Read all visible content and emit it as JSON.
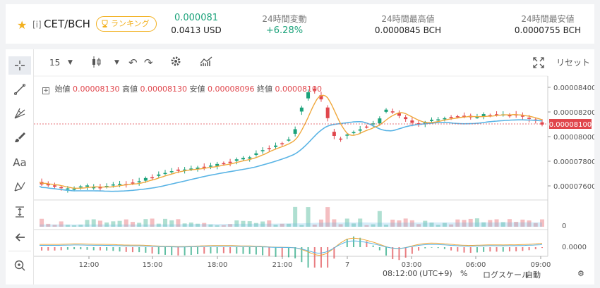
{
  "header": {
    "pair_prefix": "[i]",
    "pair": "CET/BCH",
    "ranking_label": "ランキング",
    "price": "0.000081",
    "price_usd": "0.0413 USD",
    "change_label": "24時間変動",
    "change_value": "+6.28%",
    "high_label": "24時間最高値",
    "high_value": "0.0000845 BCH",
    "low_label": "24時間最安値",
    "low_value": "0.0000755 BCH"
  },
  "toolbar": {
    "interval": "15",
    "reset_label": "リセット"
  },
  "ohlc": {
    "open_label": "始値",
    "open": "0.00008130",
    "high_label": "高値",
    "high": "0.00008130",
    "low_label": "安値",
    "low": "0.00008096",
    "close_label": "終値",
    "close": "0.00008100"
  },
  "chart_data": {
    "type": "candlestick",
    "y_ticks": [
      "0.00008400",
      "0.00008200",
      "0.00008000",
      "0.00007800",
      "0.00007600"
    ],
    "current_price_label": "0.00008100",
    "x_ticks": [
      "12:00",
      "15:00",
      "18:00",
      "21:00",
      "7",
      "03:00",
      "06:00",
      "09:00"
    ],
    "volume_tick": "0",
    "indicator_tick": "0.0000",
    "colors": {
      "up": "#1ba27a",
      "down": "#e0464c",
      "ma_fast": "#f0a83c",
      "ma_slow": "#5ab4e5"
    }
  },
  "footer": {
    "time": "08:12:00",
    "timezone": "(UTC+9)",
    "percent": "%",
    "log_scale": "ログスケール",
    "auto": "自動"
  }
}
